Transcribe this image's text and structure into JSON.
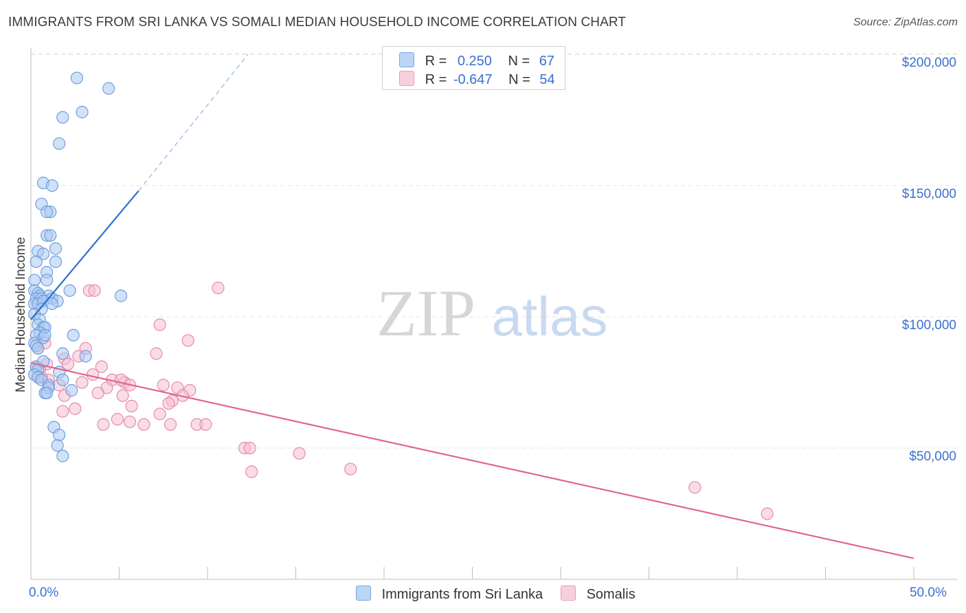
{
  "header": {
    "title": "IMMIGRANTS FROM SRI LANKA VS SOMALI MEDIAN HOUSEHOLD INCOME CORRELATION CHART",
    "source": "Source: ZipAtlas.com"
  },
  "watermark": {
    "zip": "ZIP",
    "atlas": "atlas"
  },
  "legend": {
    "rows": [
      {
        "r_label": "R =",
        "r_value": "0.250",
        "n_label": "N =",
        "n_value": "67"
      },
      {
        "r_label": "R =",
        "r_value": "-0.647",
        "n_label": "N =",
        "n_value": "54"
      }
    ]
  },
  "colors": {
    "blue_fill": "#a9c9f2",
    "blue_stroke": "#6f9fdc",
    "blue_line": "#2e6fd2",
    "pink_fill": "#f6bfd2",
    "pink_stroke": "#e58aab",
    "pink_line": "#e0658e",
    "grid": "#e4e4e4",
    "tick_text": "#3a6fd0"
  },
  "chart_data": {
    "type": "scatter",
    "title": "IMMIGRANTS FROM SRI LANKA VS SOMALI MEDIAN HOUSEHOLD INCOME CORRELATION CHART",
    "xlabel": "",
    "ylabel": "Median Household Income",
    "xlim": [
      0,
      50
    ],
    "ylim": [
      0,
      205000
    ],
    "x_tick_labels": [
      "0.0%",
      "50.0%"
    ],
    "y_ticks": [
      50000,
      100000,
      150000,
      200000
    ],
    "y_tick_labels": [
      "$50,000",
      "$100,000",
      "$150,000",
      "$200,000"
    ],
    "series": [
      {
        "name": "Immigrants from Sri Lanka",
        "color": "blue",
        "trend": {
          "x": [
            0,
            6.1
          ],
          "y": [
            99000,
            148000
          ],
          "dashed_to": {
            "x": 12.3,
            "y": 200000
          }
        },
        "points": [
          [
            2.6,
            191000
          ],
          [
            4.4,
            187000
          ],
          [
            2.9,
            178000
          ],
          [
            1.8,
            176000
          ],
          [
            1.6,
            166000
          ],
          [
            0.7,
            151000
          ],
          [
            1.2,
            150000
          ],
          [
            0.6,
            143000
          ],
          [
            1.1,
            140000
          ],
          [
            0.9,
            140000
          ],
          [
            0.9,
            131000
          ],
          [
            1.1,
            131000
          ],
          [
            1.4,
            126000
          ],
          [
            0.4,
            125000
          ],
          [
            0.7,
            124000
          ],
          [
            0.3,
            121000
          ],
          [
            1.4,
            121000
          ],
          [
            0.9,
            117000
          ],
          [
            0.9,
            114000
          ],
          [
            0.2,
            114000
          ],
          [
            0.2,
            110000
          ],
          [
            0.4,
            109000
          ],
          [
            0.5,
            108000
          ],
          [
            1.0,
            108000
          ],
          [
            2.2,
            110000
          ],
          [
            5.1,
            108000
          ],
          [
            0.3,
            107000
          ],
          [
            0.6,
            107000
          ],
          [
            1.2,
            107000
          ],
          [
            1.5,
            106000
          ],
          [
            0.2,
            105000
          ],
          [
            0.4,
            105000
          ],
          [
            0.7,
            106000
          ],
          [
            1.2,
            105000
          ],
          [
            0.6,
            103000
          ],
          [
            0.2,
            101000
          ],
          [
            0.5,
            99000
          ],
          [
            0.4,
            97000
          ],
          [
            0.7,
            96000
          ],
          [
            0.8,
            96000
          ],
          [
            0.5,
            94000
          ],
          [
            0.3,
            93000
          ],
          [
            0.7,
            92000
          ],
          [
            0.8,
            93000
          ],
          [
            2.4,
            93000
          ],
          [
            0.2,
            90000
          ],
          [
            0.3,
            89000
          ],
          [
            0.4,
            88000
          ],
          [
            1.8,
            86000
          ],
          [
            3.1,
            85000
          ],
          [
            0.3,
            81000
          ],
          [
            0.4,
            80000
          ],
          [
            1.6,
            79000
          ],
          [
            0.2,
            78000
          ],
          [
            0.4,
            77000
          ],
          [
            0.6,
            76000
          ],
          [
            1.8,
            76000
          ],
          [
            1.0,
            74000
          ],
          [
            1.0,
            73000
          ],
          [
            2.3,
            72000
          ],
          [
            0.8,
            71000
          ],
          [
            0.9,
            71000
          ],
          [
            1.3,
            58000
          ],
          [
            1.6,
            55000
          ],
          [
            1.5,
            51000
          ],
          [
            1.8,
            47000
          ],
          [
            0.7,
            83000
          ]
        ]
      },
      {
        "name": "Somalis",
        "color": "pink",
        "trend": {
          "x": [
            0,
            50
          ],
          "y": [
            82500,
            8000
          ]
        },
        "points": [
          [
            10.6,
            111000
          ],
          [
            3.3,
            110000
          ],
          [
            3.6,
            110000
          ],
          [
            7.3,
            97000
          ],
          [
            8.9,
            91000
          ],
          [
            0.8,
            90000
          ],
          [
            0.4,
            88000
          ],
          [
            3.1,
            88000
          ],
          [
            7.1,
            86000
          ],
          [
            2.7,
            85000
          ],
          [
            1.9,
            84000
          ],
          [
            0.9,
            82000
          ],
          [
            2.1,
            82000
          ],
          [
            4.0,
            81000
          ],
          [
            0.3,
            81000
          ],
          [
            0.5,
            80000
          ],
          [
            3.5,
            78000
          ],
          [
            0.4,
            77000
          ],
          [
            1.0,
            76000
          ],
          [
            2.9,
            75000
          ],
          [
            5.3,
            75000
          ],
          [
            4.6,
            76000
          ],
          [
            5.1,
            76000
          ],
          [
            1.6,
            74000
          ],
          [
            5.6,
            74000
          ],
          [
            7.5,
            74000
          ],
          [
            4.3,
            73000
          ],
          [
            8.3,
            73000
          ],
          [
            9.0,
            72000
          ],
          [
            3.8,
            71000
          ],
          [
            5.2,
            70000
          ],
          [
            1.9,
            70000
          ],
          [
            8.6,
            70000
          ],
          [
            8.0,
            68000
          ],
          [
            7.8,
            67000
          ],
          [
            5.7,
            66000
          ],
          [
            2.5,
            65000
          ],
          [
            1.8,
            64000
          ],
          [
            7.3,
            63000
          ],
          [
            4.9,
            61000
          ],
          [
            4.1,
            59000
          ],
          [
            5.6,
            60000
          ],
          [
            6.4,
            59000
          ],
          [
            7.9,
            59000
          ],
          [
            9.4,
            59000
          ],
          [
            9.9,
            59000
          ],
          [
            12.1,
            50000
          ],
          [
            12.4,
            50000
          ],
          [
            15.2,
            48000
          ],
          [
            12.5,
            41000
          ],
          [
            18.1,
            42000
          ],
          [
            37.6,
            35000
          ],
          [
            41.7,
            25000
          ],
          [
            0.6,
            77000
          ]
        ]
      }
    ]
  }
}
